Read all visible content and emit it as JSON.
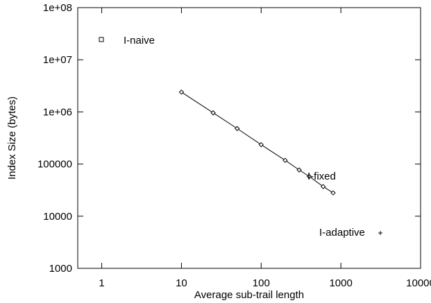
{
  "chart_data": {
    "type": "line",
    "title": "",
    "xlabel": "Average sub-trail length",
    "ylabel": "Index Size (bytes)",
    "xscale": "log",
    "yscale": "log",
    "xlim": [
      0.5,
      10000
    ],
    "ylim": [
      1000,
      100000000
    ],
    "grid": false,
    "x_ticks": [
      {
        "value": 1,
        "label": "1"
      },
      {
        "value": 10,
        "label": "10"
      },
      {
        "value": 100,
        "label": "100"
      },
      {
        "value": 1000,
        "label": "1000"
      },
      {
        "value": 10000,
        "label": "10000"
      }
    ],
    "y_ticks": [
      {
        "value": 1000,
        "label": "1000"
      },
      {
        "value": 10000,
        "label": "10000"
      },
      {
        "value": 100000,
        "label": "100000"
      },
      {
        "value": 1000000,
        "label": "1e+06"
      },
      {
        "value": 10000000,
        "label": "1e+07"
      },
      {
        "value": 100000000,
        "label": "1e+08"
      }
    ],
    "series": [
      {
        "name": "I-naive",
        "marker": "square",
        "line": false,
        "points": []
      },
      {
        "name": "I-fixed",
        "marker": "diamond",
        "line": true,
        "points": [
          {
            "x": 10,
            "y": 2400000
          },
          {
            "x": 25,
            "y": 960000
          },
          {
            "x": 50,
            "y": 480000
          },
          {
            "x": 100,
            "y": 235000
          },
          {
            "x": 200,
            "y": 118000
          },
          {
            "x": 300,
            "y": 77000
          },
          {
            "x": 400,
            "y": 58000
          },
          {
            "x": 600,
            "y": 37000
          },
          {
            "x": 800,
            "y": 28000
          }
        ]
      },
      {
        "name": "I-adaptive",
        "marker": "plus",
        "line": false,
        "points": []
      }
    ]
  }
}
